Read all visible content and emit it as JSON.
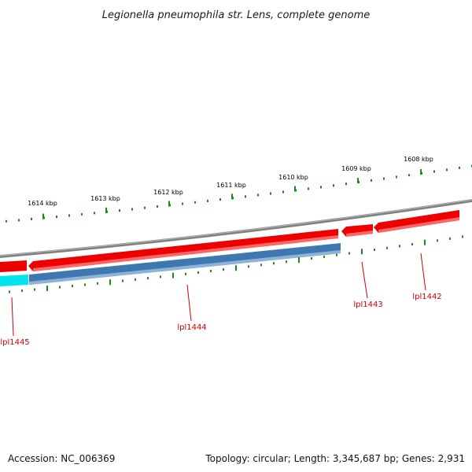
{
  "title": "Legionella pneumophila str. Lens, complete genome",
  "footer": {
    "accession": "Accession: NC_006369",
    "stats": "Topology: circular; Length: 3,345,687 bp; Genes: 2,931"
  },
  "colors": {
    "backbone": "#808080",
    "gene_forward": "#ee0000",
    "gene_reverse": "#3f78b0",
    "gene_highlight": "#00e5ee",
    "tick": "#1a8a1a",
    "label": "#cc0000",
    "background": "#ffffff"
  },
  "scale_kbp": [
    "1614 kbp",
    "1613 kbp",
    "1612 kbp",
    "1611 kbp",
    "1610 kbp",
    "1609 kbp",
    "1608 kbp"
  ],
  "genes": [
    {
      "label": "lpl1445",
      "strand": "forward"
    },
    {
      "label": "lpl1444",
      "strand": "reverse"
    },
    {
      "label": "lpl1443",
      "strand": "forward"
    },
    {
      "label": "lpl1442",
      "strand": "forward"
    }
  ]
}
